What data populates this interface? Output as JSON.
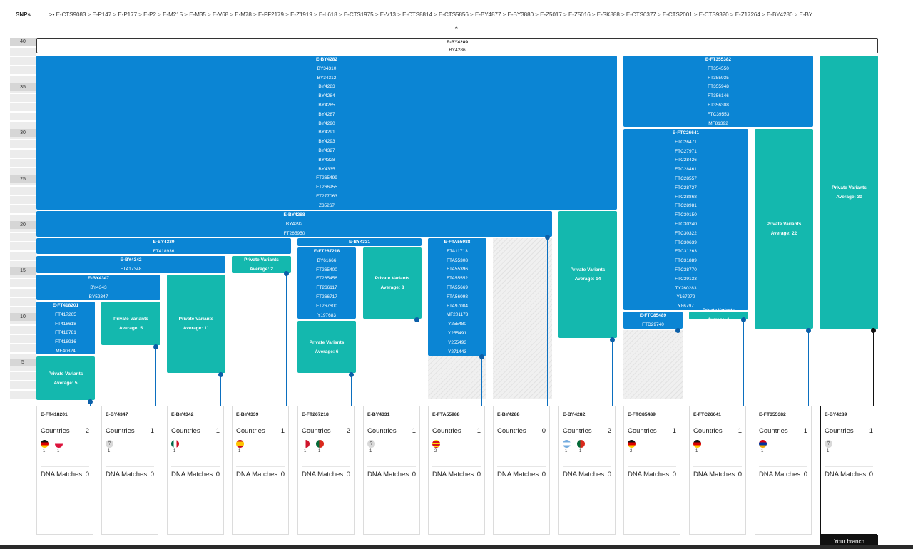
{
  "header": {
    "snps_label": "SNPs",
    "breadcrumb_prefix": "...  >•",
    "crumbs": [
      "E-CTS9083",
      "E-P147",
      "E-P177",
      "E-P2",
      "E-M215",
      "E-M35",
      "E-V68",
      "E-M78",
      "E-PF2179",
      "E-Z1919",
      "E-L618",
      "E-CTS1975",
      "E-V13",
      "E-CTS8814",
      "E-CTS5856",
      "E-BY4877",
      "E-BY3880",
      "E-Z5017",
      "E-Z5016",
      "E-SK888",
      "E-CTS6377",
      "E-CTS2001",
      "E-CTS9320",
      "E-Z17264",
      "E-BY4280",
      "E-BY"
    ]
  },
  "scale": {
    "labels": [
      "40",
      "35",
      "30",
      "25",
      "20",
      "15",
      "10",
      "5"
    ]
  },
  "collapse_icon": "chevron-up-icon",
  "blocks": {
    "root": [
      "E-BY4289",
      "BY4286"
    ],
    "by4282": [
      "E-BY4282",
      "BY34310",
      "BY34312",
      "BY4283",
      "BY4284",
      "BY4285",
      "BY4287",
      "BY4290",
      "BY4291",
      "BY4293",
      "BY4327",
      "BY4328",
      "BY4335",
      "FT265499",
      "FT266955",
      "FT277063",
      "Z35267"
    ],
    "ft355382": [
      "E-FT355382",
      "FT354550",
      "FT355935",
      "FT355948",
      "FT356146",
      "FT356308",
      "FTC39553",
      "MF81392"
    ],
    "ftc26641": [
      "E-FTC26641",
      "FTC26471",
      "FTC27971",
      "FTC28426",
      "FTC28461",
      "FTC28557",
      "FTC28727",
      "FTC28868",
      "FTC28981",
      "FTC30150",
      "FTC30240",
      "FTC30322",
      "FTC30639",
      "FTC31263",
      "FTC31889",
      "FTC38770",
      "FTC39133",
      "TY260283",
      "Y167272",
      "Y86797"
    ],
    "by4288": [
      "E-BY4288",
      "BY4292",
      "FT265950"
    ],
    "by4339": [
      "E-BY4339",
      "FT418936"
    ],
    "by4342": [
      "E-BY4342",
      "FT417348"
    ],
    "by4347": [
      "E-BY4347",
      "BY4343",
      "BY52347"
    ],
    "ft418201": [
      "E-FT418201",
      "FT417265",
      "FT418618",
      "FT418781",
      "FT418916",
      "MF40324"
    ],
    "by4331": [
      "E-BY4331"
    ],
    "ft267218": [
      "E-FT267218",
      "BY61666",
      "FT265400",
      "FT265456",
      "FT266117",
      "FT266717",
      "FT267600",
      "Y197683"
    ],
    "fta55988": [
      "E-FTA55988",
      "FTA11713",
      "FTA55308",
      "FTA55396",
      "FTA55552",
      "FTA55669",
      "FTA56098",
      "FTA97004",
      "MF201173",
      "Y255480",
      "Y255491",
      "Y255493",
      "Y271443"
    ],
    "ftc85489": [
      "E-FTC85489",
      "FTD29740"
    ],
    "pv_label": "Private Variants",
    "pv": {
      "ft418201": "Average: 5",
      "by4347": "Average: 5",
      "by4342": "Average: 11",
      "by4339": "Average: 2",
      "ft267218": "Average: 6",
      "by4331": "Average: 8",
      "by4282": "Average: 14",
      "ftc26641": "Average: 1",
      "ft355382": "Average: 22",
      "by4289": "Average: 30"
    }
  },
  "cards": [
    {
      "name": "E-FT418201",
      "countries_label": "Countries",
      "countries": "2",
      "flags": [
        {
          "icon": "germany-flag-icon",
          "n": "1"
        },
        {
          "icon": "poland-flag-icon",
          "n": "1"
        }
      ],
      "dna_label": "DNA Matches",
      "dna": "0"
    },
    {
      "name": "E-BY4347",
      "countries_label": "Countries",
      "countries": "1",
      "flags": [
        {
          "icon": "unknown-flag-icon",
          "n": "1"
        }
      ],
      "dna_label": "DNA Matches",
      "dna": "0"
    },
    {
      "name": "E-BY4342",
      "countries_label": "Countries",
      "countries": "1",
      "flags": [
        {
          "icon": "mexico-flag-icon",
          "n": "1"
        }
      ],
      "dna_label": "DNA Matches",
      "dna": "0"
    },
    {
      "name": "E-BY4339",
      "countries_label": "Countries",
      "countries": "1",
      "flags": [
        {
          "icon": "spain-flag-icon",
          "n": "1"
        }
      ],
      "dna_label": "DNA Matches",
      "dna": "0"
    },
    {
      "name": "E-FT267218",
      "countries_label": "Countries",
      "countries": "2",
      "flags": [
        {
          "icon": "malta-flag-icon",
          "n": "1"
        },
        {
          "icon": "portugal-flag-icon",
          "n": "1"
        }
      ],
      "dna_label": "DNA Matches",
      "dna": "0"
    },
    {
      "name": "E-BY4331",
      "countries_label": "Countries",
      "countries": "1",
      "flags": [
        {
          "icon": "unknown-flag-icon",
          "n": "1"
        }
      ],
      "dna_label": "DNA Matches",
      "dna": "0"
    },
    {
      "name": "E-FTA55988",
      "countries_label": "Countries",
      "countries": "1",
      "flags": [
        {
          "icon": "catalonia-flag-icon",
          "n": "2"
        }
      ],
      "dna_label": "DNA Matches",
      "dna": "0"
    },
    {
      "name": "E-BY4288",
      "countries_label": "Countries",
      "countries": "0",
      "flags": [],
      "dna_label": "DNA Matches",
      "dna": "0"
    },
    {
      "name": "E-BY4282",
      "countries_label": "Countries",
      "countries": "2",
      "flags": [
        {
          "icon": "argentina-flag-icon",
          "n": "1"
        },
        {
          "icon": "portugal-flag-icon",
          "n": "1"
        }
      ],
      "dna_label": "DNA Matches",
      "dna": "0"
    },
    {
      "name": "E-FTC85489",
      "countries_label": "Countries",
      "countries": "1",
      "flags": [
        {
          "icon": "germany-flag-icon",
          "n": "2"
        }
      ],
      "dna_label": "DNA Matches",
      "dna": "0"
    },
    {
      "name": "E-FTC26641",
      "countries_label": "Countries",
      "countries": "1",
      "flags": [
        {
          "icon": "germany-flag-icon",
          "n": "1"
        }
      ],
      "dna_label": "DNA Matches",
      "dna": "0"
    },
    {
      "name": "E-FT355382",
      "countries_label": "Countries",
      "countries": "1",
      "flags": [
        {
          "icon": "armenia-flag-icon",
          "n": "1"
        }
      ],
      "dna_label": "DNA Matches",
      "dna": "0"
    },
    {
      "name": "E-BY4289",
      "countries_label": "Countries",
      "countries": "1",
      "flags": [
        {
          "icon": "unknown-flag-icon",
          "n": "1"
        }
      ],
      "dna_label": "DNA Matches",
      "dna": "0"
    }
  ],
  "your_branch_label": "Your branch",
  "colors": {
    "blue": "#0b85d4",
    "teal": "#14b8ae",
    "stem": "#0b6fbf"
  }
}
